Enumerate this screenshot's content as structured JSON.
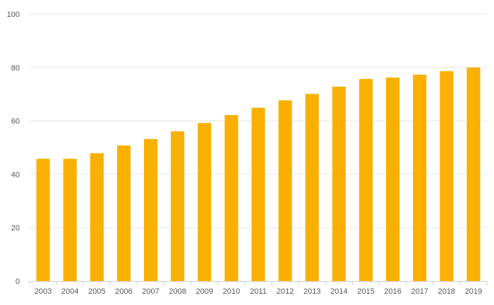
{
  "chart_data": {
    "type": "bar",
    "title": "",
    "xlabel": "",
    "ylabel": "",
    "categories": [
      "2003",
      "2004",
      "2005",
      "2006",
      "2007",
      "2008",
      "2009",
      "2010",
      "2011",
      "2012",
      "2013",
      "2014",
      "2015",
      "2016",
      "2017",
      "2018",
      "2019"
    ],
    "values": [
      45.8,
      45.8,
      47.9,
      50.8,
      53.2,
      56.1,
      59.2,
      62.2,
      64.9,
      67.7,
      70.1,
      72.8,
      75.7,
      76.2,
      77.3,
      78.6,
      80.0
    ],
    "ylim": [
      0,
      100
    ],
    "yticks": [
      "0",
      "20",
      "40",
      "60",
      "80",
      "100"
    ],
    "grid": true,
    "legend": "none",
    "colors": {
      "bar": "#f9b000",
      "grid": "#e6e6e6",
      "axis": "#cccccc",
      "tick_text": "#555555"
    }
  }
}
